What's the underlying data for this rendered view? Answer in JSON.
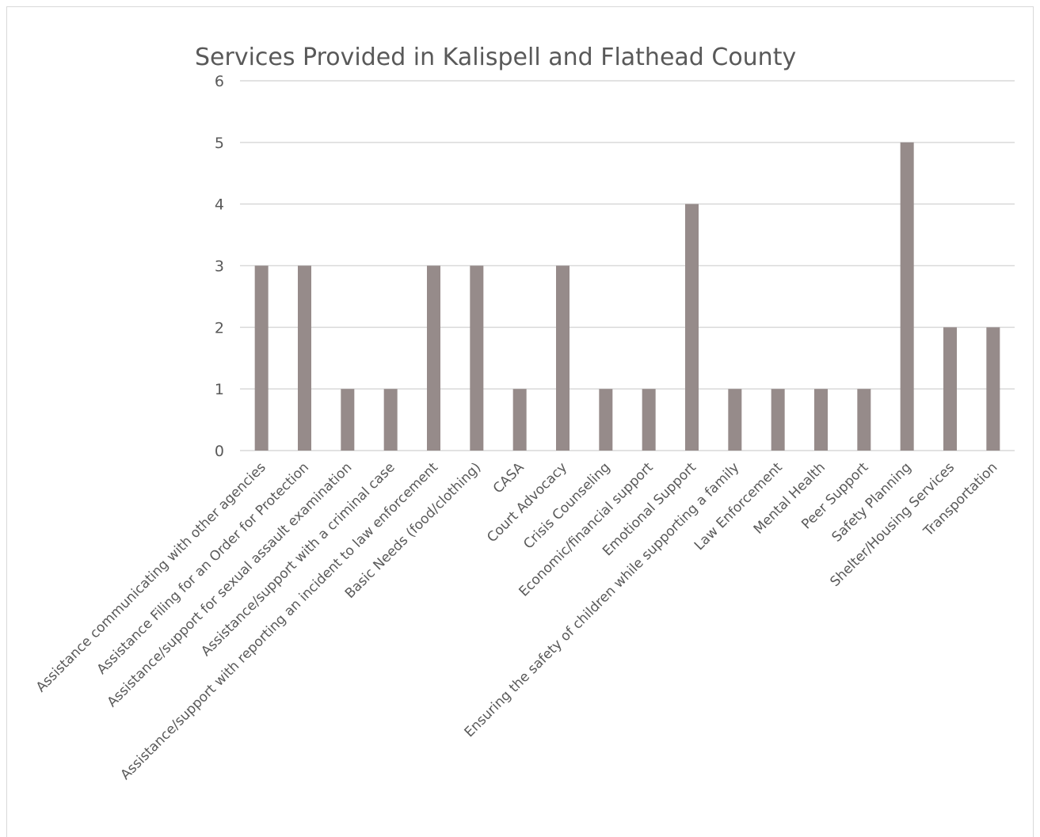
{
  "chart_data": {
    "type": "bar",
    "title": "Services Provided in Kalispell and Flathead County",
    "xlabel": "",
    "ylabel": "",
    "ylim": [
      0,
      6
    ],
    "yticks": [
      "0",
      "1",
      "2",
      "3",
      "4",
      "5",
      "6"
    ],
    "grid": true,
    "legend": "none",
    "bar_color": "#968b8a",
    "categories": [
      "Assistance communicating with other agencies",
      "Assistance Filing for an Order for Protection",
      "Assistance/support for sexual assault examination",
      "Assistance/support with a criminal case",
      "Assistance/support with reporting an incident to law enforcement",
      "Basic Needs (food/clothing)",
      "CASA",
      "Court Advocacy",
      "Crisis Counseling",
      "Economic/financial support",
      "Emotional Support",
      "Ensuring the safety of children while supporting a family",
      "Law Enforcement",
      "Mental Health",
      "Peer Support",
      "Safety Planning",
      "Shelter/Housing Services",
      "Transportation"
    ],
    "values": [
      3,
      3,
      1,
      1,
      3,
      3,
      1,
      3,
      1,
      1,
      4,
      1,
      1,
      1,
      1,
      5,
      2,
      2
    ]
  }
}
